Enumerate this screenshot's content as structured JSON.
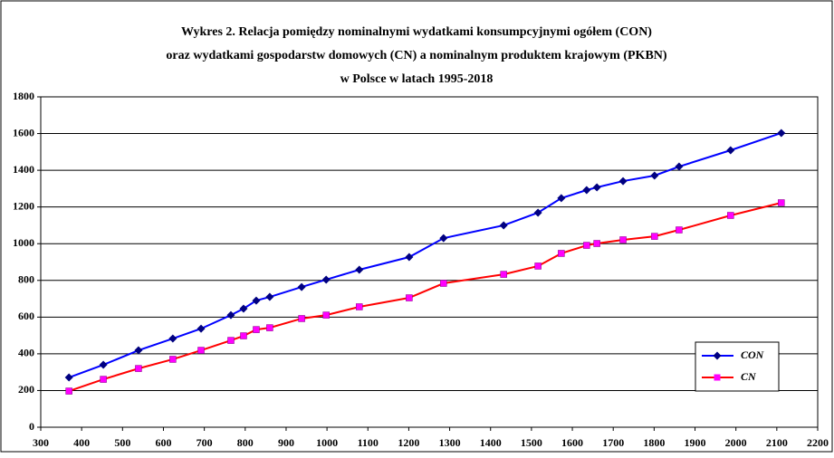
{
  "chart_data": {
    "type": "line",
    "title": [
      "Wykres 2. Relacja pomiędzy nominalnymi wydatkami konsumpcyjnymi ogółem (CON)",
      "oraz wydatkami gospodarstw domowych  (CN) a nominalnym produktem krajowym (PKBN)",
      "w Polsce w latach 1995-2018"
    ],
    "x": [
      369,
      453,
      539,
      623,
      692,
      765,
      796,
      827,
      860,
      938,
      998,
      1079,
      1201,
      1285,
      1432,
      1516,
      1573,
      1635,
      1660,
      1724,
      1801,
      1861,
      1987,
      2111
    ],
    "series": [
      {
        "name": "CON",
        "color": "#0000ff",
        "marker_color": "#000080",
        "marker": "diamond",
        "values": [
          271,
          340,
          419,
          483,
          537,
          611,
          646,
          690,
          710,
          764,
          804,
          858,
          927,
          1030,
          1100,
          1169,
          1248,
          1292,
          1307,
          1341,
          1371,
          1420,
          1509,
          1603
        ]
      },
      {
        "name": "CN",
        "color": "#ff0000",
        "marker_color": "#ff00ff",
        "marker": "square",
        "values": [
          197,
          261,
          320,
          370,
          419,
          473,
          498,
          532,
          542,
          592,
          611,
          656,
          705,
          784,
          833,
          878,
          947,
          991,
          1001,
          1021,
          1040,
          1075,
          1154,
          1223
        ]
      }
    ],
    "xlim": [
      300,
      2200
    ],
    "xticks": [
      300,
      400,
      500,
      600,
      700,
      800,
      900,
      1000,
      1100,
      1200,
      1300,
      1400,
      1500,
      1600,
      1700,
      1800,
      1900,
      2000,
      2100,
      2200
    ],
    "ylim": [
      0,
      1800
    ],
    "yticks": [
      0,
      200,
      400,
      600,
      800,
      1000,
      1200,
      1400,
      1600,
      1800
    ],
    "grid": true,
    "legend": "bottom-right"
  }
}
